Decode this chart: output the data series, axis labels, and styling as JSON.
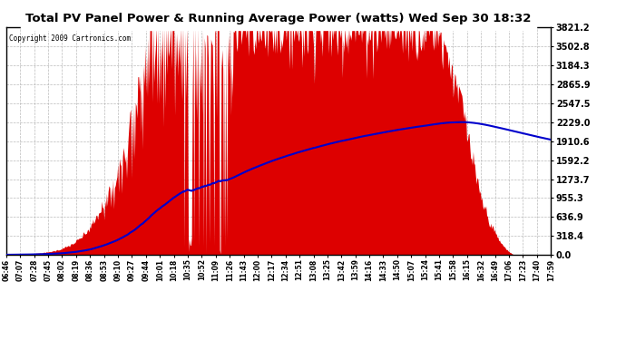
{
  "title": "Total PV Panel Power & Running Average Power (watts) Wed Sep 30 18:32",
  "copyright": "Copyright 2009 Cartronics.com",
  "y_ticks": [
    0.0,
    318.4,
    636.9,
    955.3,
    1273.7,
    1592.2,
    1910.6,
    2229.0,
    2547.5,
    2865.9,
    3184.3,
    3502.8,
    3821.2
  ],
  "x_labels": [
    "06:46",
    "07:07",
    "07:28",
    "07:45",
    "08:02",
    "08:19",
    "08:36",
    "08:53",
    "09:10",
    "09:27",
    "09:44",
    "10:01",
    "10:18",
    "10:35",
    "10:52",
    "11:09",
    "11:26",
    "11:43",
    "12:00",
    "12:17",
    "12:34",
    "12:51",
    "13:08",
    "13:25",
    "13:42",
    "13:59",
    "14:16",
    "14:33",
    "14:50",
    "15:07",
    "15:24",
    "15:41",
    "15:58",
    "16:15",
    "16:32",
    "16:49",
    "17:06",
    "17:23",
    "17:40",
    "17:59"
  ],
  "fill_color": "#dd0000",
  "line_color": "#0000cc",
  "grid_color": "#aaaaaa",
  "plot_bg_color": "#ffffff",
  "fig_bg_color": "#ffffff",
  "title_color": "#000000",
  "ymax": 3821.2,
  "ymin": 0.0,
  "n_points": 680
}
